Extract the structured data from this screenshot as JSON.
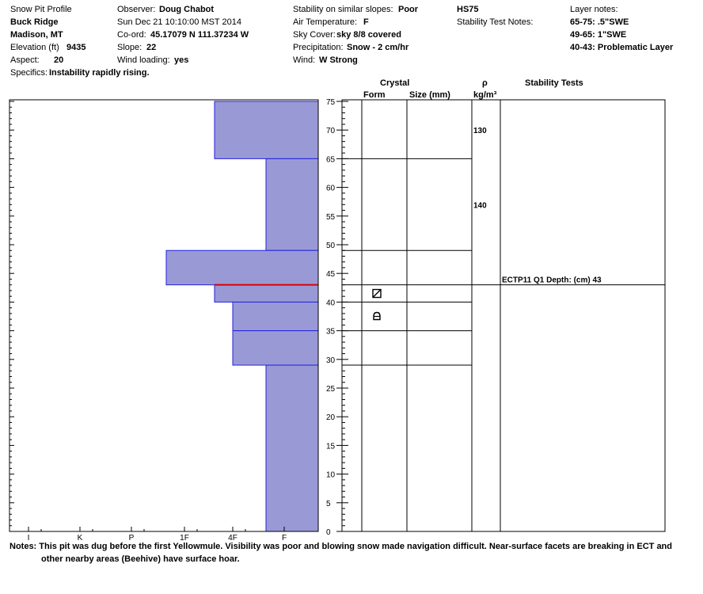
{
  "header": {
    "title": "Snow Pit Profile",
    "location": "Buck Ridge",
    "region": "Madison, MT",
    "elevation_label": "Elevation (ft)",
    "elevation": "9435",
    "aspect_label": "Aspect:",
    "aspect": "20",
    "specifics_label": "Specifics:",
    "specifics": "Instability rapidly rising.",
    "observer_label": "Observer:",
    "observer": "Doug Chabot",
    "datetime": "Sun Dec 21 10:10:00 MST 2014",
    "coord_label": "Co-ord:",
    "coord": "45.17079 N 111.37234 W",
    "slope_label": "Slope:",
    "slope": "22",
    "wind_loading_label": "Wind loading:",
    "wind_loading": "yes",
    "stability_label": "Stability on similar slopes:",
    "stability": "Poor",
    "air_temp_label": "Air Temperature:",
    "air_temp": "F",
    "sky_label": "Sky Cover:",
    "sky": "sky 8/8 covered",
    "precip_label": "Precipitation:",
    "precip": "Snow - 2 cm/hr",
    "wind_label": "Wind:",
    "wind": "W Strong",
    "hs": "HS75",
    "stability_notes_label": "Stability Test Notes:",
    "layer_notes_label": "Layer notes:",
    "layer_notes": [
      "65-75: .5\"SWE",
      "49-65: 1\"SWE",
      "40-43: Problematic Layer"
    ]
  },
  "columns": {
    "crystal": "Crystal",
    "form": "Form",
    "size": "Size (mm)",
    "rho": "ρ",
    "rho_unit": "kg/m³",
    "stability_tests": "Stability Tests"
  },
  "notes": {
    "label": "Notes:",
    "line1": "This pit was dug before the first Yellowmule.  Visibility was poor and blowing snow made navigation difficult. Near-surface facets are breaking in ECT and",
    "line2": "other nearby areas (Beehive) have surface hoar."
  },
  "chart_data": {
    "type": "bar",
    "subtype": "snow-pit-hardness-profile",
    "y_axis": {
      "range": [
        0,
        75
      ],
      "ticks": [
        0,
        5,
        10,
        15,
        20,
        25,
        30,
        35,
        40,
        45,
        50,
        55,
        60,
        65,
        70,
        75
      ],
      "unit": "cm"
    },
    "hardness_scale": [
      "I",
      "K",
      "P",
      "1F",
      "4F",
      "F"
    ],
    "hardness_layers": [
      {
        "top": 75,
        "bottom": 65,
        "hardness": "4F+"
      },
      {
        "top": 65,
        "bottom": 49,
        "hardness": "F+"
      },
      {
        "top": 49,
        "bottom": 43,
        "hardness": "1F+"
      },
      {
        "top": 43,
        "bottom": 40,
        "hardness": "4F+"
      },
      {
        "top": 40,
        "bottom": 35,
        "hardness": "4F-"
      },
      {
        "top": 35,
        "bottom": 29,
        "hardness": "4F-"
      },
      {
        "top": 29,
        "bottom": 0,
        "hardness": "F+"
      }
    ],
    "weak_layer": 43,
    "layer_boundaries": [
      65,
      49,
      43,
      40,
      35,
      29
    ],
    "crystal_symbols": [
      {
        "depth": 41.5,
        "symbol": "faceted"
      },
      {
        "depth": 37.5,
        "symbol": "depth-hoar"
      }
    ],
    "densities": [
      {
        "depth": 70,
        "value": "130"
      },
      {
        "depth": 57,
        "value": "140"
      }
    ],
    "stability_tests": [
      {
        "depth": 43,
        "label": "ECTP11 Q1 Depth: (cm) 43"
      }
    ],
    "colors": {
      "fill": "#9999d6",
      "edge": "#2222dd",
      "weak_layer": "#dd0000"
    }
  }
}
